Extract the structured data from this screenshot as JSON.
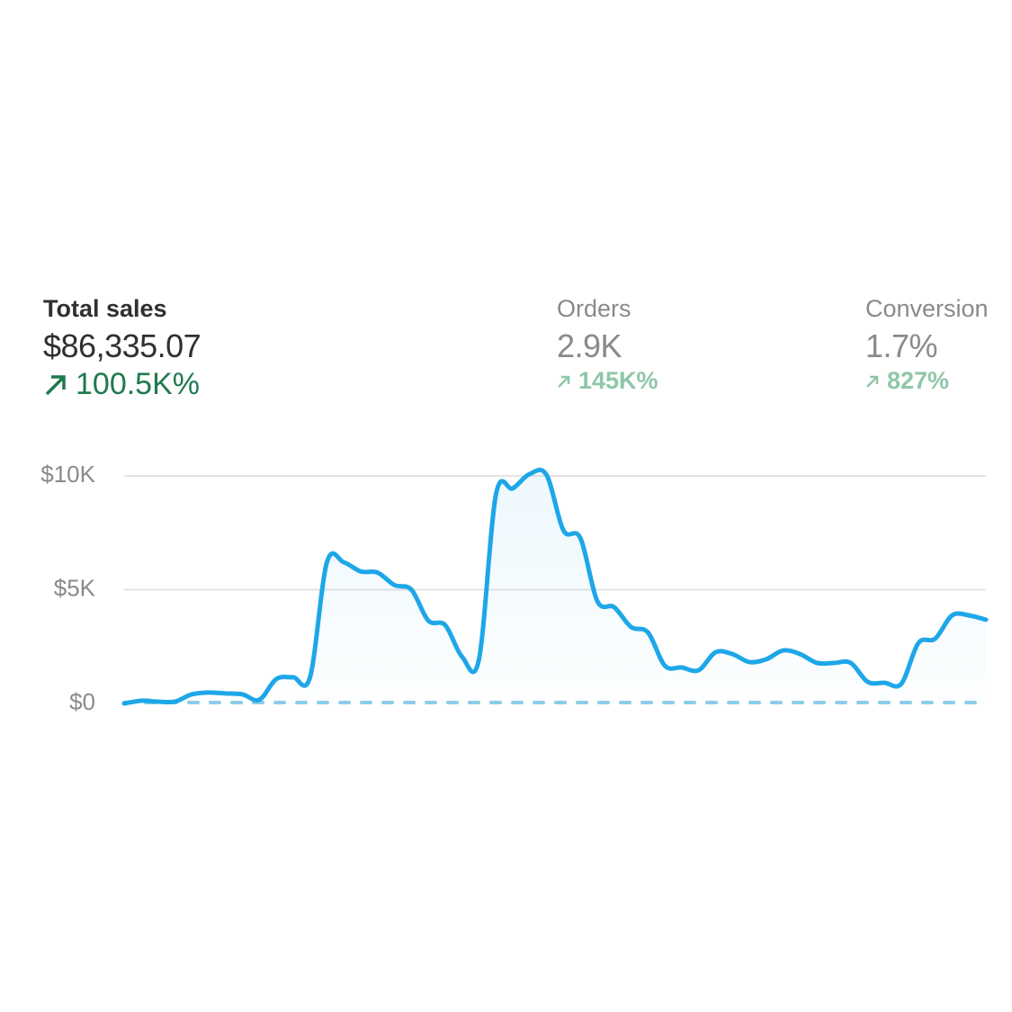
{
  "metrics": [
    {
      "label": "Total sales",
      "value": "$86,335.07",
      "change": "100.5K%"
    },
    {
      "label": "Orders",
      "value": "2.9K",
      "change": "145K%"
    },
    {
      "label": "Conversion",
      "value": "1.7%",
      "change": "827%"
    }
  ],
  "chart_data": {
    "type": "line",
    "ylim": [
      0,
      10000
    ],
    "yticks": [
      {
        "value": 0,
        "label": "$0"
      },
      {
        "value": 5000,
        "label": "$5K"
      },
      {
        "value": 10000,
        "label": "$10K"
      }
    ],
    "grid": true,
    "series": [
      {
        "color": "#1ea7e8",
        "values": [
          0,
          120,
          80,
          80,
          400,
          480,
          440,
          400,
          160,
          1070,
          1150,
          1150,
          6200,
          6200,
          5800,
          5750,
          5200,
          5000,
          3640,
          3440,
          2050,
          1940,
          9170,
          9450,
          10080,
          10040,
          7600,
          7270,
          4500,
          4230,
          3360,
          3120,
          1660,
          1580,
          1460,
          2250,
          2170,
          1820,
          1940,
          2330,
          2170,
          1780,
          1780,
          1780,
          950,
          910,
          870,
          2650,
          2850,
          3870,
          3870,
          3680
        ]
      },
      {
        "color": "#8ccde8",
        "dashed": true,
        "values": [
          40,
          40,
          40,
          40,
          40,
          40,
          40,
          40,
          40,
          40,
          40,
          40,
          40,
          40,
          40,
          40,
          40,
          40,
          40,
          40,
          40,
          40,
          40,
          40,
          40,
          40,
          40,
          40,
          40,
          40,
          40,
          40,
          40,
          40,
          40,
          40,
          40,
          40,
          40,
          40,
          40,
          40,
          40,
          40,
          40,
          40,
          40,
          40,
          40,
          40,
          40,
          40
        ]
      }
    ]
  }
}
